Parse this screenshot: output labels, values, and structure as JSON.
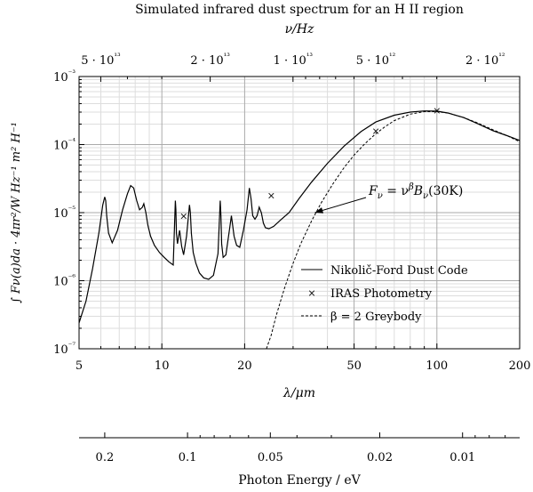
{
  "chart_data": {
    "type": "line",
    "title": "Simulated infrared dust spectrum for an H II  region",
    "xlabel": "λ/μm",
    "ylabel": "∫ Fν(a)da · 4πr²/W Hz⁻¹ m² H⁻¹",
    "x_scale": "log",
    "y_scale": "log",
    "xlim": [
      5,
      200
    ],
    "ylim": [
      1e-07,
      0.001
    ],
    "grid": true,
    "legend_position": "center-right",
    "x_ticks": [
      "5",
      "10",
      "20",
      "50",
      "100",
      "200"
    ],
    "y_ticks": [
      "10⁻⁷",
      "10⁻⁶",
      "10⁻⁵",
      "10⁻⁴",
      "10⁻³"
    ],
    "top_axis": {
      "label": "ν/Hz",
      "ticks": [
        "5 · 10¹³",
        "2 · 10¹³",
        "1 · 10¹³",
        "5 · 10¹²",
        "2 · 10¹²"
      ]
    },
    "bottom_axis": {
      "label": "Photon Energy / eV",
      "ticks": [
        "0.2",
        "0.1",
        "0.05",
        "0.02",
        "0.01"
      ]
    },
    "series": [
      {
        "name": "Nikolič-Ford Dust Code",
        "style": "solid",
        "x": [
          5.0,
          5.3,
          5.6,
          5.9,
          6.1,
          6.2,
          6.25,
          6.3,
          6.4,
          6.6,
          6.9,
          7.2,
          7.5,
          7.7,
          7.9,
          8.1,
          8.3,
          8.5,
          8.6,
          8.75,
          8.9,
          9.1,
          9.4,
          9.8,
          10.2,
          10.6,
          11.0,
          11.2,
          11.25,
          11.3,
          11.4,
          11.6,
          11.8,
          12.0,
          12.3,
          12.6,
          12.7,
          12.8,
          13.0,
          13.3,
          13.7,
          14.2,
          14.8,
          15.4,
          16.0,
          16.3,
          16.4,
          16.5,
          16.7,
          17.1,
          17.6,
          17.9,
          18.3,
          18.7,
          19.2,
          19.8,
          20.4,
          20.8,
          21.1,
          21.4,
          21.8,
          22.2,
          22.6,
          23.0,
          23.4,
          23.8,
          24.5,
          25.5,
          27.0,
          29.0,
          31.5,
          35.0,
          40.0,
          46.0,
          53.0,
          60.0,
          70.0,
          80.0,
          90.0,
          100.0,
          110.0,
          125.0,
          140.0,
          160.0,
          180.0,
          200.0
        ],
        "y": [
          2.4e-07,
          5e-07,
          1.5e-06,
          5e-06,
          1.3e-05,
          1.7e-05,
          1.5e-05,
          9e-06,
          5e-06,
          3.6e-06,
          5.5e-06,
          1.1e-05,
          1.9e-05,
          2.5e-05,
          2.3e-05,
          1.5e-05,
          1.1e-05,
          1.2e-05,
          1.35e-05,
          1e-05,
          6.5e-06,
          4.5e-06,
          3.3e-06,
          2.6e-06,
          2.2e-06,
          1.9e-06,
          1.7e-06,
          1.5e-05,
          1.1e-05,
          5e-06,
          3.5e-06,
          5.5e-06,
          3.2e-06,
          2.4e-06,
          4.5e-06,
          1.3e-05,
          1e-05,
          5e-06,
          2.6e-06,
          1.8e-06,
          1.3e-06,
          1.1e-06,
          1.05e-06,
          1.2e-06,
          2.5e-06,
          1.5e-05,
          9e-06,
          3.5e-06,
          2.2e-06,
          2.4e-06,
          5.5e-06,
          9e-06,
          4.5e-06,
          3.3e-06,
          3.1e-06,
          5.5e-06,
          1.1e-05,
          2.3e-05,
          1.6e-05,
          9e-06,
          8e-06,
          9e-06,
          1.2e-05,
          1e-05,
          7e-06,
          6e-06,
          5.8e-06,
          6.3e-06,
          7.8e-06,
          1e-05,
          1.6e-05,
          2.8e-05,
          5.3e-05,
          9.5e-05,
          0.000155,
          0.000215,
          0.00027,
          0.0003,
          0.000312,
          0.00031,
          0.00029,
          0.00025,
          0.000205,
          0.00016,
          0.000135,
          0.000115
        ]
      },
      {
        "name": "IRAS Photometry",
        "style": "markers",
        "x": [
          12,
          25,
          60,
          100
        ],
        "y": [
          9e-06,
          1.8e-05,
          0.00016,
          0.00032
        ]
      },
      {
        "name": "β = 2 Greybody",
        "style": "dashed",
        "x": [
          24.0,
          25.0,
          26.0,
          27.0,
          28.0,
          30.0,
          32.0,
          35.0,
          38.0,
          42.0,
          46.0,
          50.0,
          55.0,
          60.0,
          65.0,
          70.0,
          80.0,
          90.0,
          100.0,
          110.0,
          125.0,
          140.0,
          160.0,
          180.0,
          200.0
        ],
        "y": [
          1e-07,
          1.6e-07,
          3e-07,
          5e-07,
          8e-07,
          1.8e-06,
          3.5e-06,
          7.5e-06,
          1.4e-05,
          2.7e-05,
          4.6e-05,
          7e-05,
          0.000105,
          0.000145,
          0.000185,
          0.000225,
          0.00028,
          0.000305,
          0.000305,
          0.00029,
          0.00025,
          0.00021,
          0.000165,
          0.000135,
          0.00011
        ]
      }
    ],
    "annotation": {
      "text": "Fν = ν^β Bν(30K)",
      "text_parts": {
        "lhs": "F",
        "lhs_sub": "ν",
        "eq": " = ν",
        "sup": "β",
        "b": "B",
        "b_sub": "ν",
        "arg": "(30K)"
      },
      "arrow_to": {
        "x": 36,
        "y": 1e-05
      }
    }
  }
}
